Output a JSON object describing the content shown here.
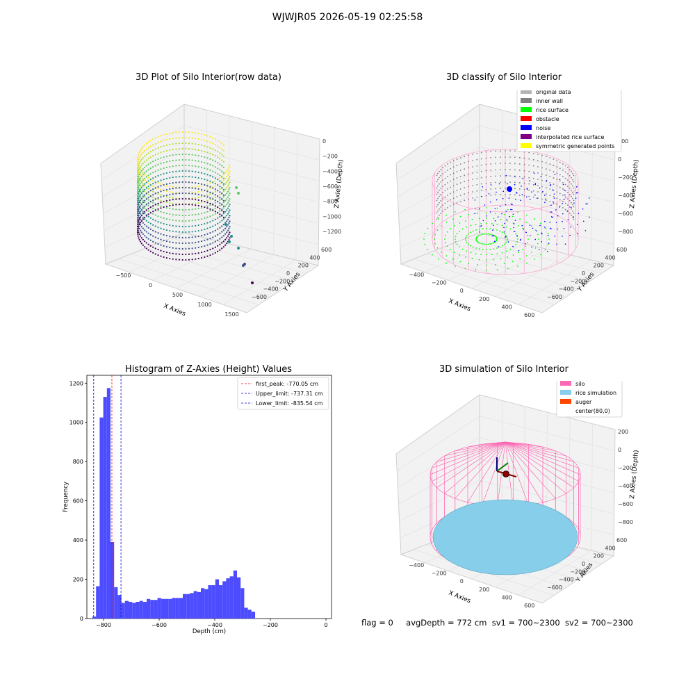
{
  "figure": {
    "suptitle": "WJWJR05 2026-05-19 02:25:58",
    "status_flag": "flag = 0",
    "status_avg": "avgDepth = 772 cm",
    "status_sv1": "sv1 = 700~2300",
    "status_sv2": "sv2 = 700~2300"
  },
  "colors": {
    "hist_bar": "#4d4dff",
    "first_peak": "#ff0000",
    "limit": "#0000cc",
    "original": "#b3b3b3",
    "inner_wall": "#808080",
    "rice": "#00ff00",
    "obstacle": "#ff0000",
    "noise": "#0000ff",
    "interpolated": "#800080",
    "symmetric": "#ffff00",
    "silo": "#ff69b4",
    "rice_sim": "#87ceeb",
    "auger": "#ff4500"
  },
  "chart_data": [
    {
      "type": "scatter",
      "title": "3D Plot of Silo Interior(row data)",
      "xlabel": "X Axies",
      "ylabel": "Y Axies",
      "zlabel": "Z Axies (Depth)",
      "x_ticks": [
        "−500",
        "0",
        "500",
        "1000",
        "1500"
      ],
      "y_ticks": [
        "600",
        "400",
        "200",
        "0",
        "−200",
        "−400",
        "−600"
      ],
      "z_ticks": [
        "0",
        "−200",
        "−400",
        "−600",
        "−800",
        "−1000",
        "−1200"
      ],
      "colormap": "viridis"
    },
    {
      "type": "scatter",
      "title": "3D classify of Silo Interior",
      "xlabel": "X Axies",
      "ylabel": "Y Axies",
      "zlabel": "Z Axies (Depth)",
      "x_ticks": [
        "−400",
        "−200",
        "0",
        "200",
        "400",
        "600"
      ],
      "y_ticks": [
        "600",
        "400",
        "200",
        "0",
        "−200",
        "−400",
        "−600"
      ],
      "z_ticks": [
        "200",
        "0",
        "−200",
        "−400",
        "−600",
        "−800"
      ],
      "legend": [
        "original data",
        "inner wall",
        "rice surface",
        "obstacle",
        "noise",
        "interpolated rice surface",
        "symmetric generated points"
      ],
      "legend_placement": "top-right"
    },
    {
      "type": "bar",
      "title": "Histogram of Z-Axies (Height) Values",
      "xlabel": "Depth (cm)",
      "ylabel": "Frequency",
      "xlim": [
        -860,
        20
      ],
      "ylim": [
        0,
        1240
      ],
      "x_ticks": [
        -800,
        -600,
        -400,
        -200,
        0
      ],
      "y_ticks": [
        0,
        200,
        400,
        600,
        800,
        1000,
        1200
      ],
      "bin_start": -840,
      "bin_width": 13,
      "values": [
        10,
        165,
        1025,
        1130,
        1175,
        390,
        160,
        120,
        80,
        90,
        85,
        80,
        85,
        90,
        85,
        100,
        95,
        95,
        105,
        100,
        100,
        100,
        105,
        105,
        105,
        125,
        125,
        130,
        140,
        135,
        155,
        150,
        170,
        170,
        200,
        170,
        190,
        205,
        215,
        245,
        210,
        155,
        55,
        45,
        35
      ],
      "lines": [
        {
          "label": "first_peak: -770.05 cm",
          "x": -770.05,
          "color": "first_peak"
        },
        {
          "label": "Upper_limit: -737.31 cm",
          "x": -737.31,
          "color": "limit"
        },
        {
          "label": "Lower_limit: -835.54 cm",
          "x": -835.54,
          "color": "limit"
        }
      ],
      "legend_placement": "top-right"
    },
    {
      "type": "scatter",
      "title": "3D simulation of Silo Interior",
      "xlabel": "X Axies",
      "ylabel": "Y Axies",
      "zlabel": "Z Axies (Depth)",
      "x_ticks": [
        "−400",
        "−200",
        "0",
        "200",
        "400",
        "600"
      ],
      "y_ticks": [
        "600",
        "400",
        "200",
        "0",
        "−200",
        "−400",
        "−600"
      ],
      "z_ticks": [
        "200",
        "0",
        "−200",
        "−400",
        "−600",
        "−800"
      ],
      "legend": [
        "silo",
        "rice simulation",
        "auger",
        "center(80,0)"
      ],
      "legend_placement": "top-right"
    }
  ]
}
